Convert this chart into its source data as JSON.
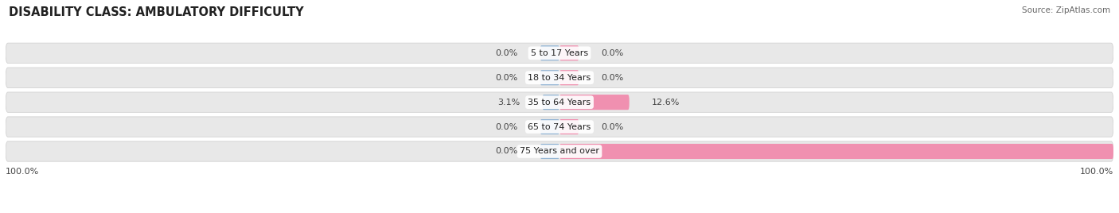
{
  "title": "DISABILITY CLASS: AMBULATORY DIFFICULTY",
  "source": "Source: ZipAtlas.com",
  "categories": [
    "5 to 17 Years",
    "18 to 34 Years",
    "35 to 64 Years",
    "65 to 74 Years",
    "75 Years and over"
  ],
  "male_values": [
    0.0,
    0.0,
    3.1,
    0.0,
    0.0
  ],
  "female_values": [
    0.0,
    0.0,
    12.6,
    0.0,
    100.0
  ],
  "male_color": "#92b4d4",
  "female_color": "#f090b0",
  "row_bg_color": "#e8e8e8",
  "row_border_color": "#cccccc",
  "max_value": 100.0,
  "left_label": "100.0%",
  "right_label": "100.0%",
  "title_fontsize": 10.5,
  "label_fontsize": 8.0,
  "category_fontsize": 8.0,
  "legend_fontsize": 8.5,
  "source_fontsize": 7.5
}
